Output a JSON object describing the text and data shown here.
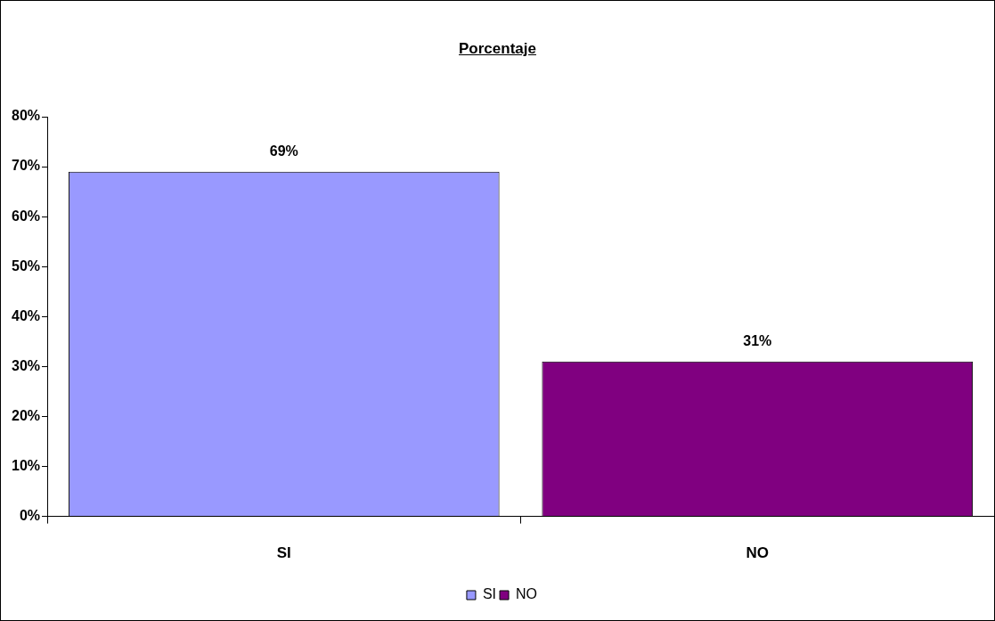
{
  "chart_data": {
    "type": "bar",
    "title": "Porcentaje",
    "categories": [
      "SI",
      "NO"
    ],
    "series": [
      {
        "name": "SI",
        "color": "#9999ff",
        "values": [
          69,
          null
        ],
        "value_labels": [
          "69%",
          null
        ]
      },
      {
        "name": "NO",
        "color": "#800080",
        "values": [
          null,
          31
        ],
        "value_labels": [
          null,
          "31%"
        ]
      }
    ],
    "ylim": [
      0,
      80
    ],
    "yticks": [
      {
        "value": 0,
        "label": "0%"
      },
      {
        "value": 10,
        "label": "10%"
      },
      {
        "value": 20,
        "label": "20%"
      },
      {
        "value": 30,
        "label": "30%"
      },
      {
        "value": 40,
        "label": "40%"
      },
      {
        "value": 50,
        "label": "50%"
      },
      {
        "value": 60,
        "label": "60%"
      },
      {
        "value": 70,
        "label": "70%"
      },
      {
        "value": 80,
        "label": "80%"
      }
    ],
    "grid": false,
    "legend": "bottom"
  }
}
